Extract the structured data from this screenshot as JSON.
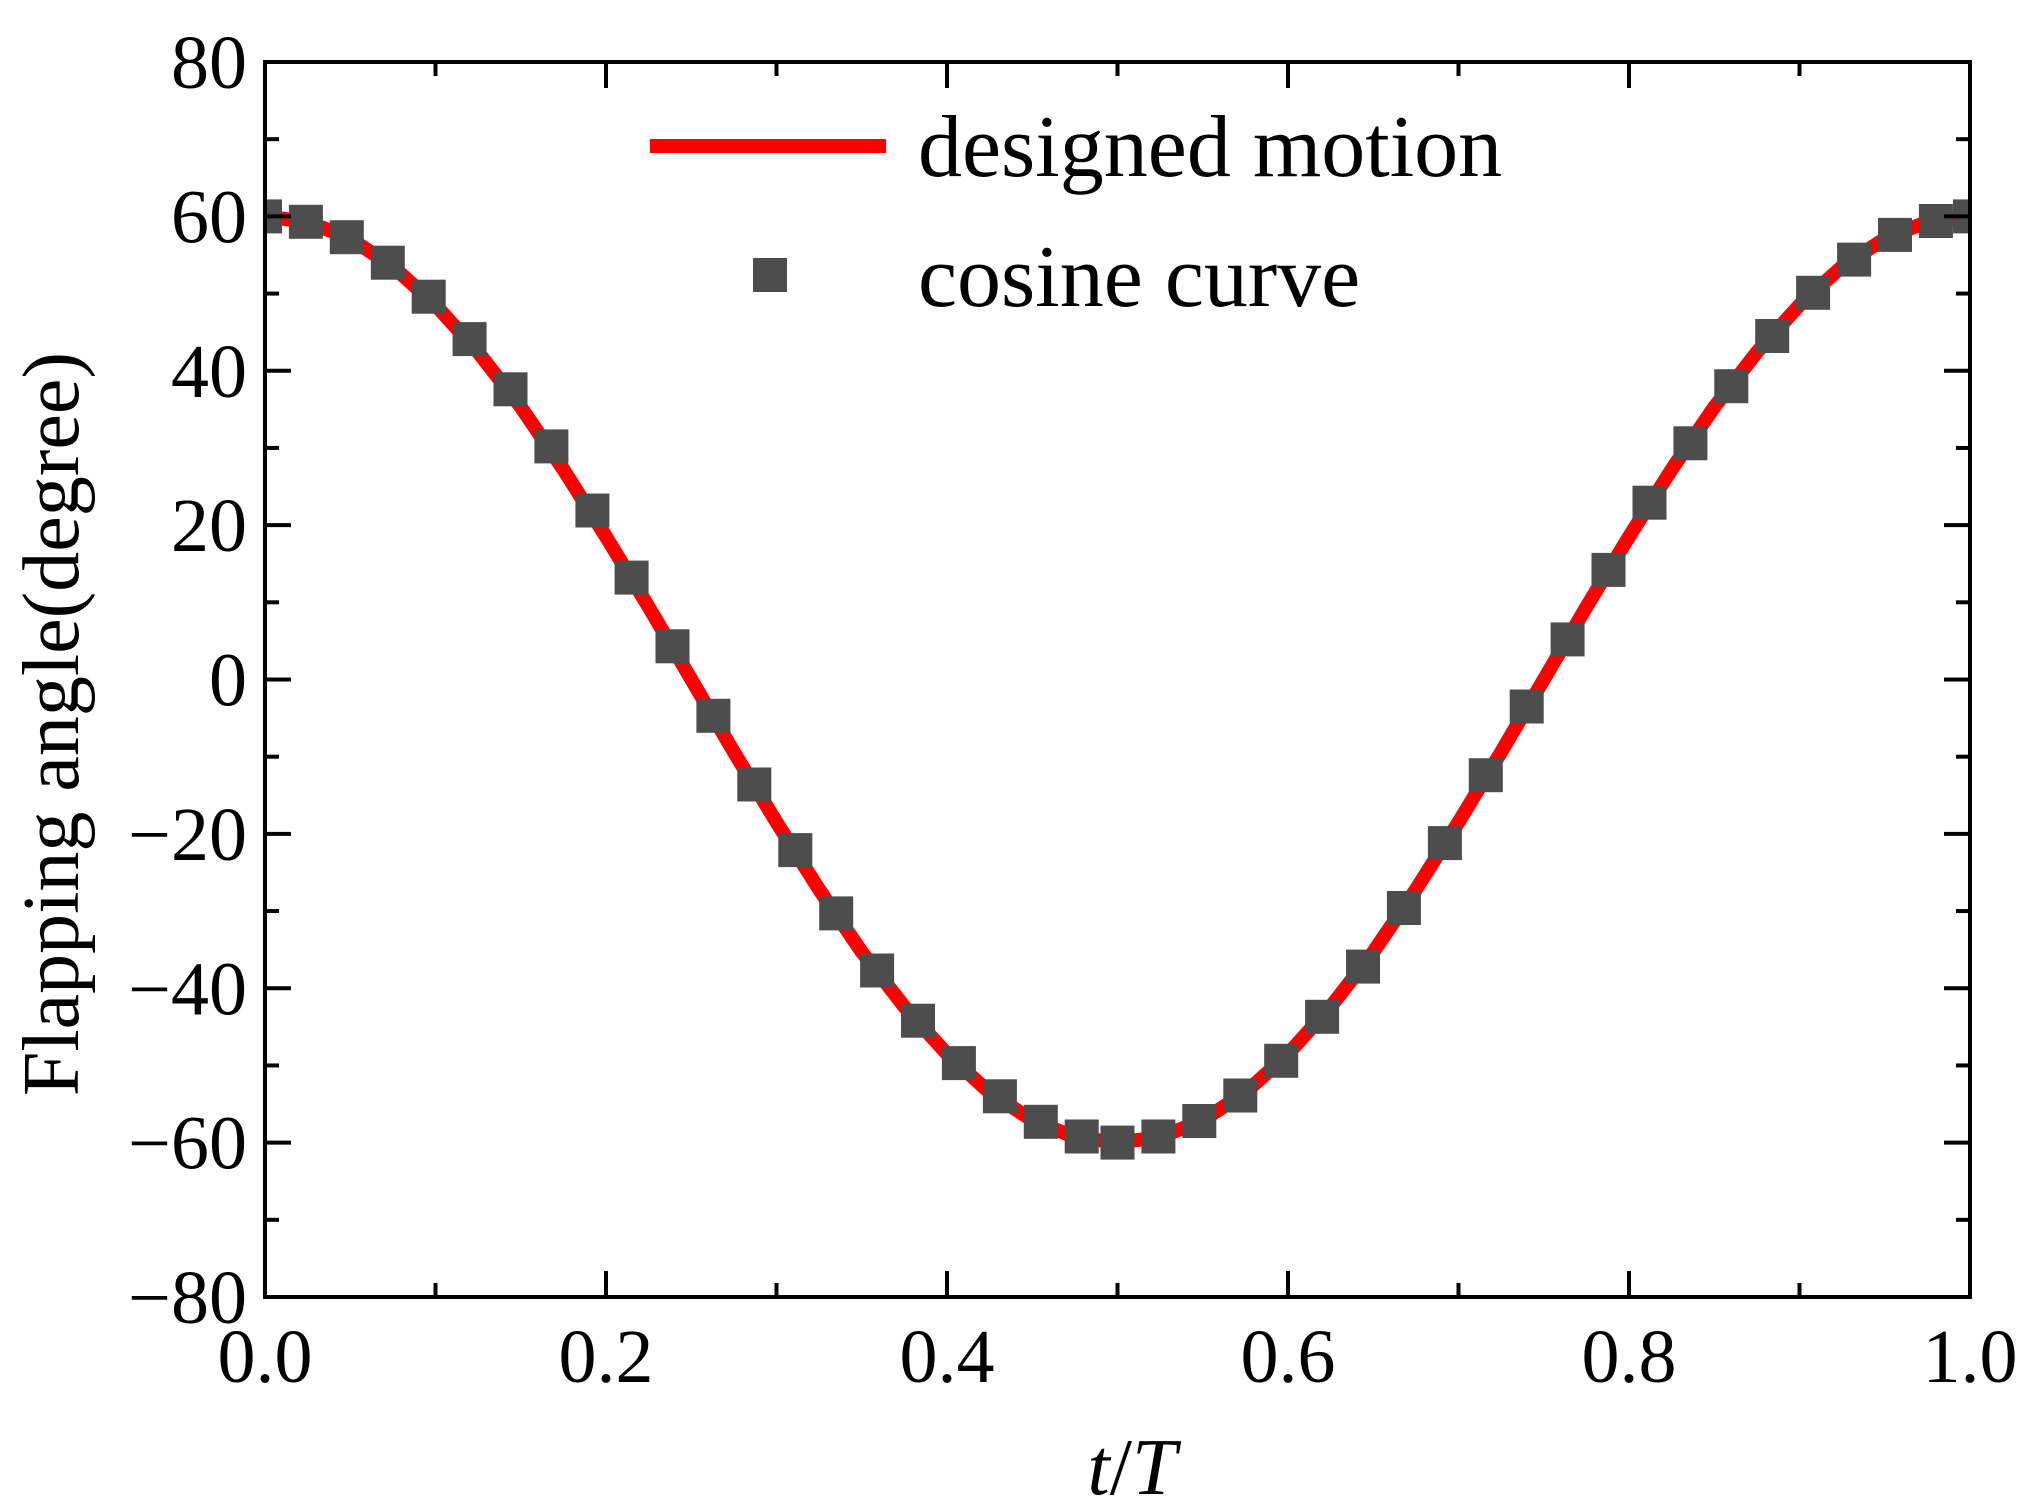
{
  "chart_data": {
    "type": "line",
    "title": "",
    "xlabel_var": "t",
    "xlabel_sep": "/",
    "xlabel_den": "T",
    "ylabel": "Flapping angle(degree)",
    "xlim": [
      0.0,
      1.0
    ],
    "ylim": [
      -80,
      80
    ],
    "xticks": [
      0.0,
      0.2,
      0.4,
      0.6,
      0.8,
      1.0
    ],
    "xtick_labels": [
      "0.0",
      "0.2",
      "0.4",
      "0.6",
      "0.8",
      "1.0"
    ],
    "yticks": [
      -80,
      -60,
      -40,
      -20,
      0,
      20,
      40,
      60,
      80
    ],
    "ytick_labels": [
      "−80",
      "−60",
      "−40",
      "−20",
      "0",
      "20",
      "40",
      "60",
      "80"
    ],
    "grid": false,
    "legend_position": "top",
    "series": [
      {
        "name": "designed motion",
        "kind": "line",
        "color": "#ff0000",
        "x": [
          0.0,
          0.025,
          0.05,
          0.075,
          0.1,
          0.125,
          0.15,
          0.175,
          0.2,
          0.225,
          0.25,
          0.275,
          0.3,
          0.325,
          0.35,
          0.375,
          0.4,
          0.425,
          0.45,
          0.475,
          0.5,
          0.525,
          0.55,
          0.575,
          0.6,
          0.625,
          0.65,
          0.675,
          0.7,
          0.725,
          0.75,
          0.775,
          0.8,
          0.825,
          0.85,
          0.875,
          0.9,
          0.925,
          0.95,
          0.975,
          1.0
        ],
        "values": [
          60.0,
          59.3,
          57.1,
          53.5,
          48.5,
          42.4,
          35.3,
          27.2,
          18.5,
          9.4,
          0.0,
          -9.4,
          -18.5,
          -27.2,
          -35.3,
          -42.4,
          -48.5,
          -53.5,
          -57.1,
          -59.3,
          -60.0,
          -59.3,
          -57.1,
          -53.5,
          -48.5,
          -42.4,
          -35.3,
          -27.2,
          -18.5,
          -9.4,
          0.0,
          9.4,
          18.5,
          27.2,
          35.3,
          42.4,
          48.5,
          53.5,
          57.1,
          59.3,
          60.0
        ]
      },
      {
        "name": "cosine curve",
        "kind": "scatter",
        "marker": "square",
        "color": "#4d4d4d",
        "x": [
          0.0,
          0.024,
          0.048,
          0.072,
          0.096,
          0.12,
          0.144,
          0.168,
          0.192,
          0.215,
          0.239,
          0.263,
          0.287,
          0.311,
          0.335,
          0.359,
          0.383,
          0.407,
          0.431,
          0.455,
          0.479,
          0.5,
          0.524,
          0.548,
          0.572,
          0.596,
          0.62,
          0.644,
          0.668,
          0.692,
          0.716,
          0.74,
          0.764,
          0.788,
          0.812,
          0.836,
          0.86,
          0.884,
          0.908,
          0.932,
          0.956,
          0.98,
          1.0
        ],
        "values": [
          60.0,
          59.3,
          57.3,
          54.0,
          49.6,
          44.1,
          37.6,
          30.2,
          21.9,
          13.2,
          4.3,
          -4.7,
          -13.6,
          -22.1,
          -30.3,
          -37.7,
          -44.2,
          -49.7,
          -54.0,
          -57.3,
          -59.2,
          -60.0,
          -59.2,
          -57.2,
          -53.9,
          -49.4,
          -43.7,
          -37.2,
          -29.6,
          -21.2,
          -12.4,
          -3.5,
          5.2,
          14.2,
          22.9,
          30.6,
          38.0,
          44.5,
          50.1,
          54.4,
          57.6,
          59.4,
          60.0
        ]
      }
    ]
  }
}
